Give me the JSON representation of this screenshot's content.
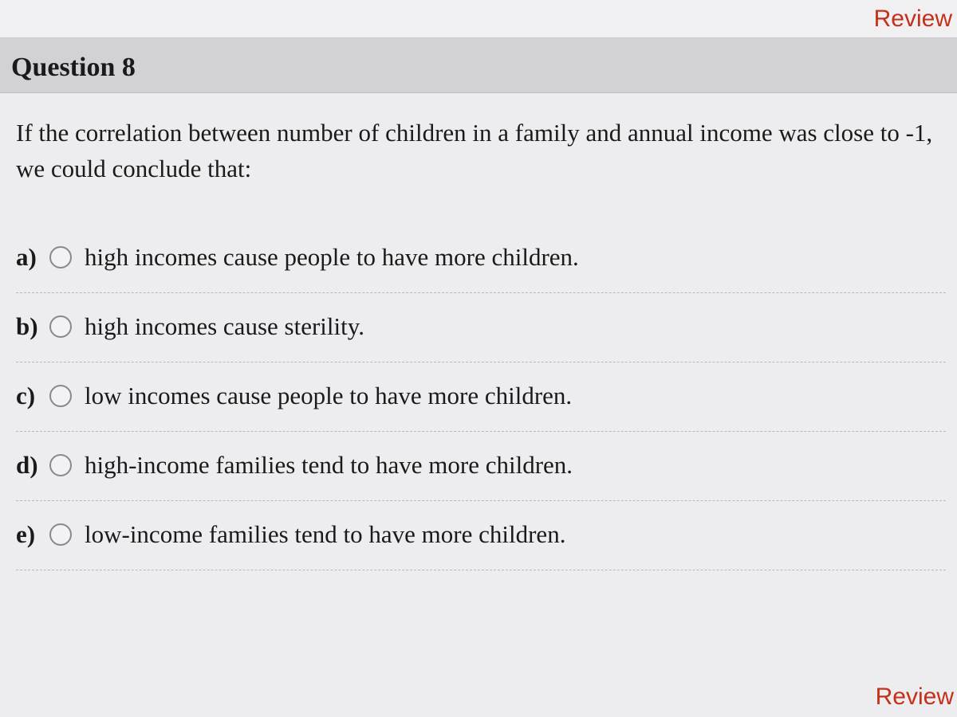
{
  "header": {
    "review_link_top": "Review",
    "review_link_bottom": "Review"
  },
  "question": {
    "title": "Question 8",
    "prompt": "If the correlation between number of children in a family and annual income was close to -1, we could conclude that:"
  },
  "options": [
    {
      "letter": "a)",
      "text": "high incomes cause people to have more children."
    },
    {
      "letter": "b)",
      "text": "high incomes cause sterility."
    },
    {
      "letter": "c)",
      "text": "low incomes cause people to have more children."
    },
    {
      "letter": "d)",
      "text": "high-income families tend to have more children."
    },
    {
      "letter": "e)",
      "text": "low-income families tend to have more children."
    }
  ]
}
